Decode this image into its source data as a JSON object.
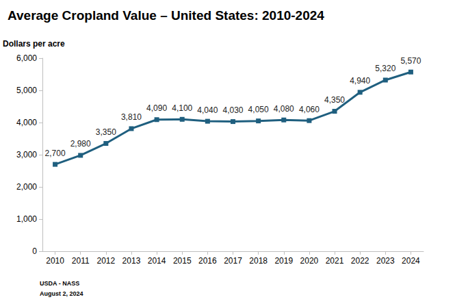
{
  "chart_data": {
    "type": "line",
    "title": "Average Cropland Value – United States: 2010-2024",
    "y_label": "Dollars per acre",
    "annotations": [
      "USDA - NASS",
      "August 2, 2024"
    ],
    "categories": [
      "2010",
      "2011",
      "2012",
      "2013",
      "2014",
      "2015",
      "2016",
      "2017",
      "2018",
      "2019",
      "2020",
      "2021",
      "2022",
      "2023",
      "2024"
    ],
    "values": [
      2700,
      2980,
      3350,
      3810,
      4090,
      4100,
      4040,
      4030,
      4050,
      4080,
      4060,
      4350,
      4940,
      5320,
      5570
    ],
    "value_labels": [
      "2,700",
      "2,980",
      "3,350",
      "3,810",
      "4,090",
      "4,100",
      "4,040",
      "4,030",
      "4,050",
      "4,080",
      "4,060",
      "4,350",
      "4,940",
      "5,320",
      "5,570"
    ],
    "color": "#1f5f7f",
    "marker": "square",
    "data_labels": true,
    "grid": false,
    "ylim": [
      0,
      6000
    ],
    "yticks": [
      0,
      {
        "value": 1000,
        "label": "1,000"
      },
      {
        "value": 2000,
        "label": "2,000"
      },
      {
        "value": 3000,
        "label": "3,000"
      },
      {
        "value": 4000,
        "label": "4,000"
      },
      {
        "value": 5000,
        "label": "5,000"
      },
      {
        "value": 6000,
        "label": "6,000"
      }
    ]
  }
}
